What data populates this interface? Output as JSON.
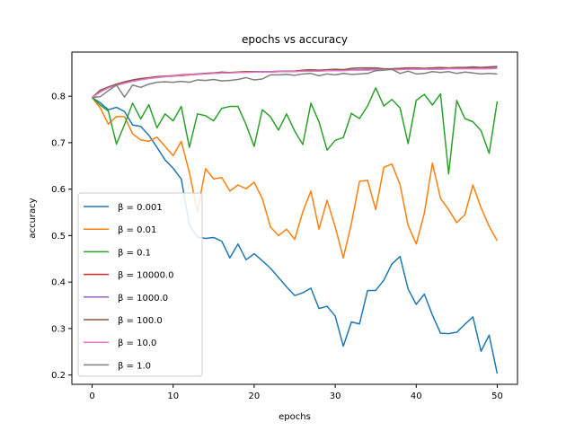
{
  "chart_data": {
    "type": "line",
    "title": "epochs vs accuracy",
    "xlabel": "epochs",
    "ylabel": "accuracy",
    "xlim": [
      -2.5,
      52.5
    ],
    "ylim": [
      0.18,
      0.895
    ],
    "x_ticks": [
      0,
      10,
      20,
      30,
      40,
      50
    ],
    "y_ticks": [
      0.2,
      0.3,
      0.4,
      0.5,
      0.6,
      0.7,
      0.8
    ],
    "x_tick_labels": [
      "0",
      "10",
      "20",
      "30",
      "40",
      "50"
    ],
    "y_tick_labels": [
      "0.2",
      "0.3",
      "0.4",
      "0.5",
      "0.6",
      "0.7",
      "0.8"
    ],
    "grid": false,
    "legend_position": "lower-left",
    "x": [
      0,
      1,
      2,
      3,
      4,
      5,
      6,
      7,
      8,
      9,
      10,
      11,
      12,
      13,
      14,
      15,
      16,
      17,
      18,
      19,
      20,
      21,
      22,
      23,
      24,
      25,
      26,
      27,
      28,
      29,
      30,
      31,
      32,
      33,
      34,
      35,
      36,
      37,
      38,
      39,
      40,
      41,
      42,
      43,
      44,
      45,
      46,
      47,
      48,
      49,
      50
    ],
    "series": [
      {
        "name": "β = 0.001",
        "color": "#1f77b4",
        "values": [
          0.797,
          0.786,
          0.771,
          0.776,
          0.767,
          0.738,
          0.735,
          0.716,
          0.69,
          0.663,
          0.645,
          0.622,
          0.523,
          0.497,
          0.494,
          0.496,
          0.488,
          0.452,
          0.482,
          0.448,
          0.461,
          0.446,
          0.43,
          0.41,
          0.39,
          0.371,
          0.377,
          0.387,
          0.343,
          0.348,
          0.327,
          0.262,
          0.314,
          0.31,
          0.382,
          0.382,
          0.404,
          0.439,
          0.455,
          0.385,
          0.352,
          0.374,
          0.329,
          0.29,
          0.289,
          0.292,
          0.309,
          0.325,
          0.251,
          0.286,
          0.203
        ]
      },
      {
        "name": "β = 0.01",
        "color": "#ff7f0e",
        "values": [
          0.797,
          0.775,
          0.74,
          0.756,
          0.756,
          0.719,
          0.706,
          0.703,
          0.712,
          0.692,
          0.672,
          0.703,
          0.636,
          0.552,
          0.644,
          0.622,
          0.625,
          0.596,
          0.609,
          0.601,
          0.615,
          0.58,
          0.519,
          0.5,
          0.514,
          0.492,
          0.551,
          0.596,
          0.514,
          0.576,
          0.519,
          0.452,
          0.526,
          0.617,
          0.619,
          0.556,
          0.647,
          0.654,
          0.61,
          0.522,
          0.482,
          0.548,
          0.656,
          0.58,
          0.556,
          0.528,
          0.545,
          0.609,
          0.56,
          0.52,
          0.489
        ]
      },
      {
        "name": "β = 0.1",
        "color": "#2ca02c",
        "values": [
          0.797,
          0.781,
          0.768,
          0.697,
          0.739,
          0.785,
          0.751,
          0.782,
          0.732,
          0.762,
          0.747,
          0.778,
          0.69,
          0.762,
          0.758,
          0.747,
          0.774,
          0.778,
          0.778,
          0.739,
          0.692,
          0.771,
          0.756,
          0.727,
          0.762,
          0.725,
          0.696,
          0.785,
          0.745,
          0.684,
          0.705,
          0.711,
          0.763,
          0.752,
          0.779,
          0.818,
          0.779,
          0.793,
          0.775,
          0.698,
          0.791,
          0.804,
          0.781,
          0.805,
          0.633,
          0.791,
          0.752,
          0.745,
          0.726,
          0.677,
          0.789
        ]
      },
      {
        "name": "β = 10000.0",
        "color": "#d62728",
        "values": [
          0.797,
          0.812,
          0.818,
          0.824,
          0.829,
          0.833,
          0.836,
          0.839,
          0.841,
          0.843,
          0.844,
          0.846,
          0.847,
          0.848,
          0.849,
          0.85,
          0.85,
          0.851,
          0.851,
          0.852,
          0.852,
          0.852,
          0.853,
          0.853,
          0.854,
          0.854,
          0.854,
          0.855,
          0.855,
          0.855,
          0.856,
          0.856,
          0.857,
          0.857,
          0.857,
          0.858,
          0.858,
          0.858,
          0.858,
          0.859,
          0.859,
          0.859,
          0.859,
          0.86,
          0.86,
          0.86,
          0.86,
          0.86,
          0.861,
          0.861,
          0.861
        ]
      },
      {
        "name": "β = 1000.0",
        "color": "#9467bd",
        "values": [
          0.797,
          0.811,
          0.819,
          0.825,
          0.83,
          0.834,
          0.837,
          0.839,
          0.841,
          0.842,
          0.843,
          0.845,
          0.846,
          0.848,
          0.849,
          0.849,
          0.85,
          0.851,
          0.851,
          0.852,
          0.853,
          0.853,
          0.853,
          0.854,
          0.854,
          0.854,
          0.855,
          0.855,
          0.855,
          0.856,
          0.856,
          0.857,
          0.857,
          0.857,
          0.858,
          0.858,
          0.858,
          0.859,
          0.859,
          0.859,
          0.86,
          0.86,
          0.86,
          0.86,
          0.86,
          0.861,
          0.861,
          0.861,
          0.861,
          0.861,
          0.862
        ]
      },
      {
        "name": "β = 100.0",
        "color": "#8c564b",
        "values": [
          0.797,
          0.813,
          0.82,
          0.826,
          0.831,
          0.835,
          0.838,
          0.84,
          0.842,
          0.843,
          0.844,
          0.844,
          0.846,
          0.847,
          0.849,
          0.85,
          0.852,
          0.851,
          0.852,
          0.853,
          0.853,
          0.852,
          0.852,
          0.853,
          0.854,
          0.854,
          0.856,
          0.857,
          0.856,
          0.857,
          0.858,
          0.857,
          0.86,
          0.861,
          0.861,
          0.861,
          0.859,
          0.859,
          0.86,
          0.861,
          0.861,
          0.86,
          0.861,
          0.862,
          0.861,
          0.862,
          0.862,
          0.863,
          0.862,
          0.863,
          0.864
        ]
      },
      {
        "name": "β = 10.0",
        "color": "#e377c2",
        "values": [
          0.797,
          0.809,
          0.818,
          0.823,
          0.828,
          0.832,
          0.835,
          0.838,
          0.84,
          0.842,
          0.843,
          0.845,
          0.846,
          0.847,
          0.848,
          0.849,
          0.85,
          0.85,
          0.851,
          0.851,
          0.852,
          0.852,
          0.852,
          0.853,
          0.853,
          0.853,
          0.854,
          0.854,
          0.854,
          0.855,
          0.855,
          0.855,
          0.856,
          0.856,
          0.856,
          0.857,
          0.857,
          0.857,
          0.857,
          0.858,
          0.858,
          0.858,
          0.858,
          0.858,
          0.859,
          0.859,
          0.859,
          0.859,
          0.859,
          0.859,
          0.86
        ]
      },
      {
        "name": "β = 1.0",
        "color": "#7f7f7f",
        "values": [
          0.797,
          0.799,
          0.812,
          0.824,
          0.798,
          0.824,
          0.819,
          0.826,
          0.83,
          0.831,
          0.83,
          0.832,
          0.83,
          0.835,
          0.834,
          0.836,
          0.833,
          0.834,
          0.836,
          0.84,
          0.835,
          0.837,
          0.846,
          0.846,
          0.847,
          0.845,
          0.848,
          0.849,
          0.844,
          0.848,
          0.846,
          0.849,
          0.847,
          0.848,
          0.849,
          0.855,
          0.856,
          0.858,
          0.849,
          0.854,
          0.848,
          0.849,
          0.853,
          0.851,
          0.853,
          0.849,
          0.852,
          0.85,
          0.848,
          0.849,
          0.848
        ]
      }
    ]
  }
}
